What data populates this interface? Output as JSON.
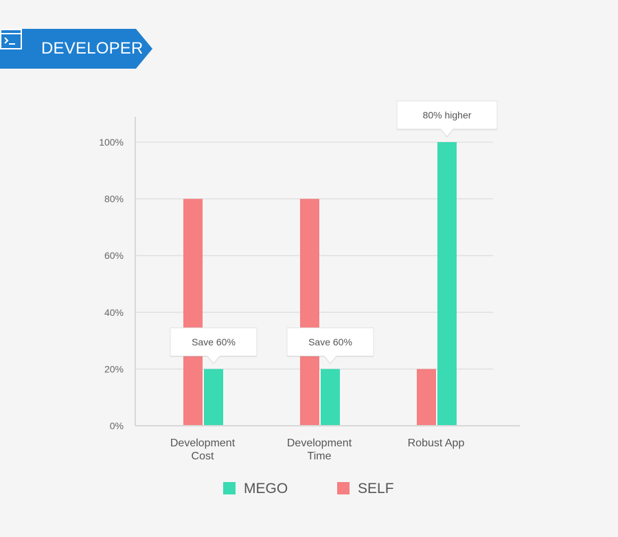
{
  "header": {
    "title": "DEVELOPER",
    "icon": "terminal-icon",
    "color": "#1e7fd0"
  },
  "chart_data": {
    "type": "bar",
    "categories": [
      [
        "Development",
        "Cost"
      ],
      [
        "Development",
        "Time"
      ],
      [
        "Robust App"
      ]
    ],
    "series": [
      {
        "name": "SELF",
        "color": "#f57f81",
        "values": [
          80,
          80,
          20
        ]
      },
      {
        "name": "MEGO",
        "color": "#3adab2",
        "values": [
          20,
          20,
          100
        ]
      }
    ],
    "ylim": [
      0,
      100
    ],
    "yticks": [
      0,
      20,
      40,
      60,
      80,
      100
    ],
    "ytick_labels": [
      "0%",
      "20%",
      "40%",
      "60%",
      "80%",
      "100%"
    ],
    "grid": true,
    "legend": {
      "placement": "bottom",
      "order": [
        "MEGO",
        "SELF"
      ]
    },
    "annotations": [
      {
        "category_index": 0,
        "series": "MEGO",
        "text": "Save 60%"
      },
      {
        "category_index": 1,
        "series": "MEGO",
        "text": "Save 60%"
      },
      {
        "category_index": 2,
        "series": "MEGO",
        "text": "80% higher"
      }
    ]
  }
}
